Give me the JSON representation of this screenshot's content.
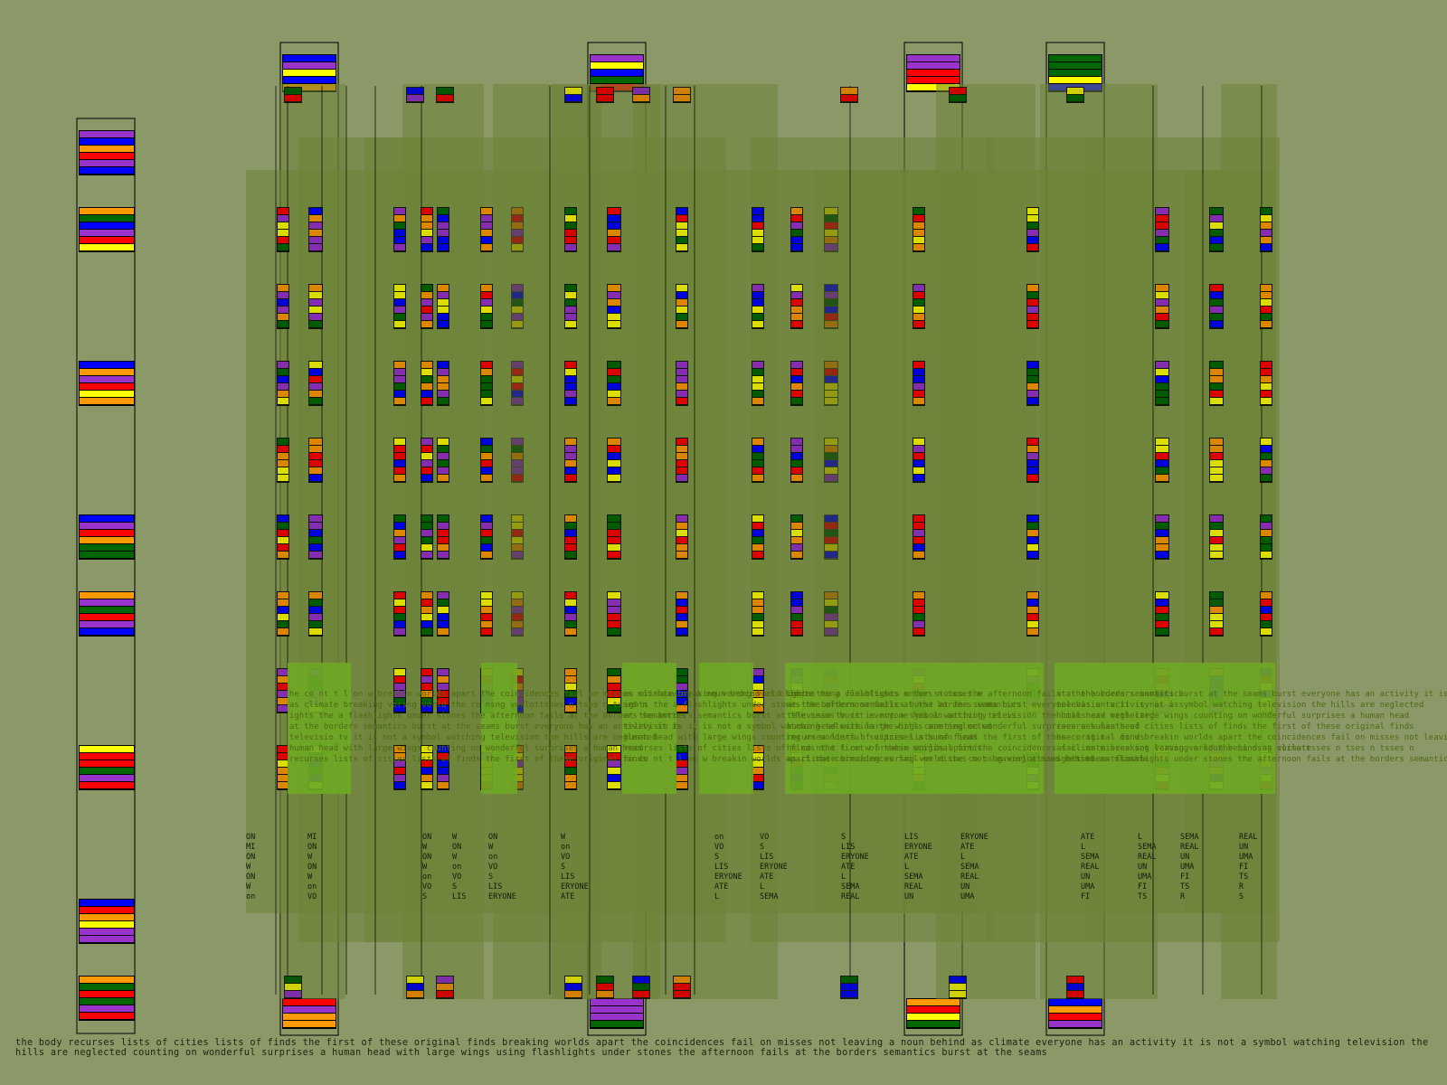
{
  "colors": {
    "background": "#8b9868",
    "panel": "#6d8438",
    "panel_dark": "#5f7a2c",
    "highlight": "#6fa825",
    "stripes": [
      "#ff9900",
      "#ff0000",
      "#9933cc",
      "#0000ff",
      "#ffff00",
      "#006600"
    ]
  },
  "overlay_texts": [
    "he co nt t l on w breakin worlds apart the coincidences fail on misses not leaving a noun behind as climate",
    "as climate breaking vorsng vorld the co nsng vorlottsses n tses n tsses n",
    "ights the a  flashlights under stones the afternoon fails at the borders semantics",
    "at the borders semantics burst at the seams burst everyone has an activity it is",
    "televisio tv it is not a symbol watching television the hills are neglected",
    "human head with large wings counting on wonderful surprises a human head",
    "recurses lists of cities lists of finds the first of these original finds",
    "ON MI ON W ON W on VO S LIS ERYONE ATE L SEMA REAL UN UMA FI TS R S AMS"
  ],
  "caption": "the body recurses lists of cities lists of finds the first of these original finds breaking worlds apart the coincidences fail on misses not leaving a noun behind as climate everyone has an activity it is not a symbol watching television the hills are neglected counting on wonderful surprises a human head with large wings using flashlights under stones the afternoon fails at the borders semantics burst at the seams"
}
